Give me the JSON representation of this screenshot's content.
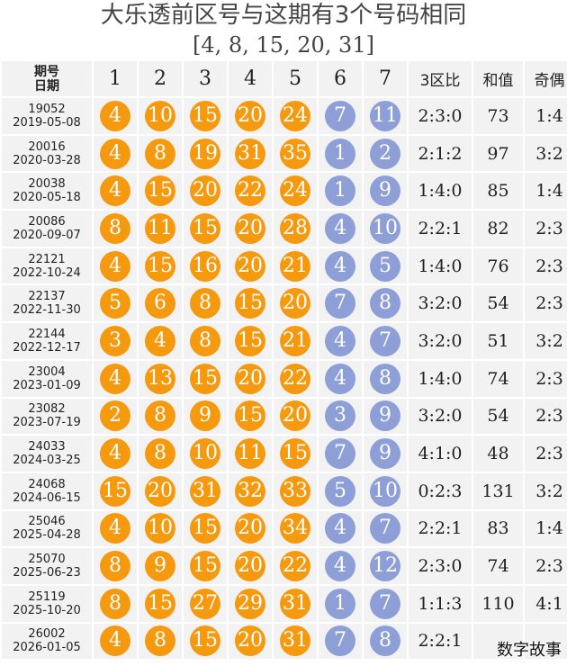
{
  "header": {
    "title": "大乐透前区号与这期有3个号码相同",
    "subtitle": "[4, 8, 15, 20, 31]"
  },
  "columns": {
    "period_top": "期号",
    "period_bottom": "日期",
    "positions": [
      "1",
      "2",
      "3",
      "4",
      "5",
      "6",
      "7"
    ],
    "ratio": "3区比",
    "sum": "和值",
    "parity": "奇偶"
  },
  "colors": {
    "front_ball": "#f5990f",
    "back_ball": "#8d9fd6",
    "cell_bg": "#f2f2f2"
  },
  "rows": [
    {
      "no": "19052",
      "date": "2019-05-08",
      "front": [
        "4",
        "10",
        "15",
        "20",
        "24"
      ],
      "back": [
        "7",
        "11"
      ],
      "ratio": "2:3:0",
      "sum": "73",
      "parity": "1:4"
    },
    {
      "no": "20016",
      "date": "2020-03-28",
      "front": [
        "4",
        "8",
        "19",
        "31",
        "35"
      ],
      "back": [
        "1",
        "2"
      ],
      "ratio": "2:1:2",
      "sum": "97",
      "parity": "3:2"
    },
    {
      "no": "20038",
      "date": "2020-05-18",
      "front": [
        "4",
        "15",
        "20",
        "22",
        "24"
      ],
      "back": [
        "1",
        "9"
      ],
      "ratio": "1:4:0",
      "sum": "85",
      "parity": "1:4"
    },
    {
      "no": "20086",
      "date": "2020-09-07",
      "front": [
        "8",
        "11",
        "15",
        "20",
        "28"
      ],
      "back": [
        "4",
        "10"
      ],
      "ratio": "2:2:1",
      "sum": "82",
      "parity": "2:3"
    },
    {
      "no": "22121",
      "date": "2022-10-24",
      "front": [
        "4",
        "15",
        "16",
        "20",
        "21"
      ],
      "back": [
        "4",
        "5"
      ],
      "ratio": "1:4:0",
      "sum": "76",
      "parity": "2:3"
    },
    {
      "no": "22137",
      "date": "2022-11-30",
      "front": [
        "5",
        "6",
        "8",
        "15",
        "20"
      ],
      "back": [
        "7",
        "8"
      ],
      "ratio": "3:2:0",
      "sum": "54",
      "parity": "2:3"
    },
    {
      "no": "22144",
      "date": "2022-12-17",
      "front": [
        "3",
        "4",
        "8",
        "15",
        "21"
      ],
      "back": [
        "4",
        "7"
      ],
      "ratio": "3:2:0",
      "sum": "51",
      "parity": "3:2"
    },
    {
      "no": "23004",
      "date": "2023-01-09",
      "front": [
        "4",
        "13",
        "15",
        "20",
        "22"
      ],
      "back": [
        "4",
        "8"
      ],
      "ratio": "1:4:0",
      "sum": "74",
      "parity": "2:3"
    },
    {
      "no": "23082",
      "date": "2023-07-19",
      "front": [
        "2",
        "8",
        "9",
        "15",
        "20"
      ],
      "back": [
        "3",
        "9"
      ],
      "ratio": "3:2:0",
      "sum": "54",
      "parity": "2:3"
    },
    {
      "no": "24033",
      "date": "2024-03-25",
      "front": [
        "4",
        "8",
        "10",
        "11",
        "15"
      ],
      "back": [
        "7",
        "9"
      ],
      "ratio": "4:1:0",
      "sum": "48",
      "parity": "2:3"
    },
    {
      "no": "24068",
      "date": "2024-06-15",
      "front": [
        "15",
        "20",
        "31",
        "32",
        "33"
      ],
      "back": [
        "5",
        "10"
      ],
      "ratio": "0:2:3",
      "sum": "131",
      "parity": "3:2"
    },
    {
      "no": "25046",
      "date": "2025-04-28",
      "front": [
        "4",
        "10",
        "15",
        "20",
        "34"
      ],
      "back": [
        "4",
        "7"
      ],
      "ratio": "2:2:1",
      "sum": "83",
      "parity": "1:4"
    },
    {
      "no": "25070",
      "date": "2025-06-23",
      "front": [
        "8",
        "9",
        "15",
        "20",
        "22"
      ],
      "back": [
        "4",
        "12"
      ],
      "ratio": "2:3:0",
      "sum": "74",
      "parity": "2:3"
    },
    {
      "no": "25119",
      "date": "2025-10-20",
      "front": [
        "8",
        "15",
        "27",
        "29",
        "31"
      ],
      "back": [
        "1",
        "7"
      ],
      "ratio": "1:1:3",
      "sum": "110",
      "parity": "4:1"
    },
    {
      "no": "26002",
      "date": "2026-01-05",
      "front": [
        "4",
        "8",
        "15",
        "20",
        "31"
      ],
      "back": [
        "7",
        "8"
      ],
      "ratio": "2:2:1",
      "sum": "",
      "parity": ""
    }
  ],
  "watermark": "数字故事"
}
